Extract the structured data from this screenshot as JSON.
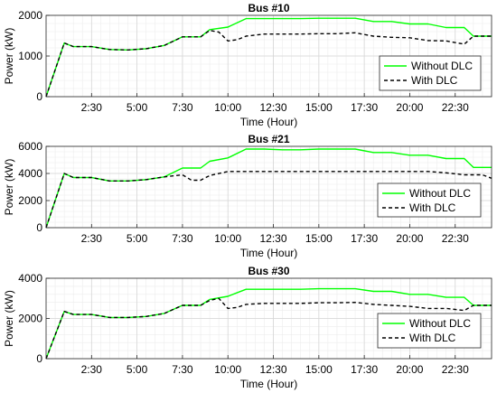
{
  "chart_data": [
    {
      "type": "line",
      "title": "Bus #10",
      "xlabel": "Time (Hour)",
      "ylabel": "Power (kW)",
      "xlim": [
        0,
        24.5
      ],
      "ylim": [
        0,
        2000
      ],
      "yticks": [
        0,
        1000,
        2000
      ],
      "xticks": [
        2.5,
        5,
        7.5,
        10,
        12.5,
        15,
        17.5,
        20,
        22.5
      ],
      "xtick_labels": [
        "2:30",
        "5:00",
        "7:30",
        "10:00",
        "12:30",
        "15:00",
        "17:30",
        "20:00",
        "22:30"
      ],
      "grid": true,
      "legend_position": "right",
      "series": [
        {
          "name": "Without DLC",
          "color": "#00ff00",
          "style": "solid",
          "x": [
            0,
            1,
            1.5,
            2.5,
            3.5,
            4.5,
            5.5,
            6.5,
            7.5,
            8.5,
            9,
            10,
            11,
            12,
            13,
            14,
            15,
            16,
            17,
            18,
            19,
            20,
            21,
            22,
            23,
            23.5,
            24.5
          ],
          "y": [
            0,
            1320,
            1230,
            1230,
            1160,
            1150,
            1180,
            1260,
            1470,
            1470,
            1650,
            1710,
            1920,
            1920,
            1920,
            1920,
            1930,
            1930,
            1930,
            1850,
            1850,
            1790,
            1790,
            1700,
            1700,
            1490,
            1490
          ]
        },
        {
          "name": "With DLC",
          "color": "#000000",
          "style": "dashed",
          "x": [
            0,
            1,
            1.5,
            2.5,
            3.5,
            4.5,
            5.5,
            6.5,
            7.5,
            8.5,
            9,
            9.5,
            10,
            10.5,
            11,
            12,
            13,
            14,
            15,
            16,
            17,
            18,
            19,
            20,
            21,
            22,
            23,
            23.5,
            24.5
          ],
          "y": [
            0,
            1320,
            1230,
            1230,
            1160,
            1150,
            1180,
            1260,
            1470,
            1470,
            1630,
            1590,
            1370,
            1400,
            1490,
            1540,
            1540,
            1540,
            1550,
            1550,
            1570,
            1490,
            1460,
            1450,
            1380,
            1370,
            1290,
            1490,
            1490
          ]
        }
      ]
    },
    {
      "type": "line",
      "title": "Bus #21",
      "xlabel": "Time (Hour)",
      "ylabel": "Power (kW)",
      "xlim": [
        0,
        24.5
      ],
      "ylim": [
        0,
        6000
      ],
      "yticks": [
        0,
        2000,
        4000,
        6000
      ],
      "xticks": [
        2.5,
        5,
        7.5,
        10,
        12.5,
        15,
        17.5,
        20,
        22.5
      ],
      "xtick_labels": [
        "2:30",
        "5:00",
        "7:30",
        "10:00",
        "12:30",
        "15:00",
        "17:30",
        "20:00",
        "22:30"
      ],
      "grid": true,
      "legend_position": "bottom-right",
      "series": [
        {
          "name": "Without DLC",
          "color": "#00ff00",
          "style": "solid",
          "x": [
            0,
            1,
            1.5,
            2.5,
            3.5,
            4.5,
            5.5,
            6.5,
            7.5,
            8.5,
            9,
            10,
            11,
            12,
            13,
            14,
            15,
            16,
            17,
            18,
            19,
            20,
            21,
            22,
            23,
            23.5,
            24.5
          ],
          "y": [
            0,
            4000,
            3700,
            3700,
            3450,
            3450,
            3550,
            3750,
            4400,
            4400,
            4900,
            5150,
            5800,
            5800,
            5750,
            5750,
            5800,
            5800,
            5800,
            5550,
            5550,
            5350,
            5350,
            5100,
            5100,
            4450,
            4450
          ]
        },
        {
          "name": "With DLC",
          "color": "#000000",
          "style": "dashed",
          "x": [
            0,
            1,
            1.5,
            2.5,
            3.5,
            4.5,
            5.5,
            6.5,
            7.5,
            8,
            8.5,
            9,
            10,
            11,
            12,
            13,
            14,
            15,
            16,
            17,
            18,
            19,
            20,
            21,
            22,
            23,
            24,
            24.5
          ],
          "y": [
            0,
            4000,
            3700,
            3700,
            3450,
            3450,
            3550,
            3750,
            3900,
            3500,
            3500,
            3850,
            4150,
            4150,
            4150,
            4150,
            4150,
            4150,
            4150,
            4150,
            4150,
            4150,
            4150,
            4150,
            4050,
            3900,
            3900,
            3650
          ]
        }
      ]
    },
    {
      "type": "line",
      "title": "Bus #30",
      "xlabel": "Time (Hour)",
      "ylabel": "Power (kW)",
      "xlim": [
        0,
        24.5
      ],
      "ylim": [
        0,
        4000
      ],
      "yticks": [
        0,
        2000,
        4000
      ],
      "xticks": [
        2.5,
        5,
        7.5,
        10,
        12.5,
        15,
        17.5,
        20,
        22.5
      ],
      "xtick_labels": [
        "2:30",
        "5:00",
        "7:30",
        "10:00",
        "12:30",
        "15:00",
        "17:30",
        "20:00",
        "22:30"
      ],
      "grid": true,
      "legend_position": "right",
      "series": [
        {
          "name": "Without DLC",
          "color": "#00ff00",
          "style": "solid",
          "x": [
            0,
            1,
            1.5,
            2.5,
            3.5,
            4.5,
            5.5,
            6.5,
            7.5,
            8.5,
            9,
            10,
            11,
            12,
            13,
            14,
            15,
            16,
            17,
            18,
            19,
            20,
            21,
            22,
            23,
            23.5,
            24.5
          ],
          "y": [
            0,
            2350,
            2200,
            2200,
            2050,
            2050,
            2100,
            2250,
            2650,
            2650,
            2950,
            3100,
            3450,
            3450,
            3450,
            3450,
            3480,
            3480,
            3480,
            3350,
            3350,
            3200,
            3200,
            3050,
            3050,
            2650,
            2650
          ]
        },
        {
          "name": "With DLC",
          "color": "#000000",
          "style": "dashed",
          "x": [
            0,
            1,
            1.5,
            2.5,
            3.5,
            4.5,
            5.5,
            6.5,
            7.5,
            8.5,
            9,
            9.5,
            10,
            10.5,
            11,
            12,
            13,
            14,
            15,
            16,
            17,
            18,
            19,
            20,
            21,
            22,
            23,
            23.5,
            24.5
          ],
          "y": [
            0,
            2350,
            2200,
            2200,
            2050,
            2050,
            2100,
            2250,
            2650,
            2650,
            2900,
            3000,
            2500,
            2550,
            2700,
            2750,
            2750,
            2750,
            2780,
            2780,
            2800,
            2700,
            2650,
            2600,
            2500,
            2500,
            2400,
            2650,
            2650
          ]
        }
      ]
    }
  ]
}
